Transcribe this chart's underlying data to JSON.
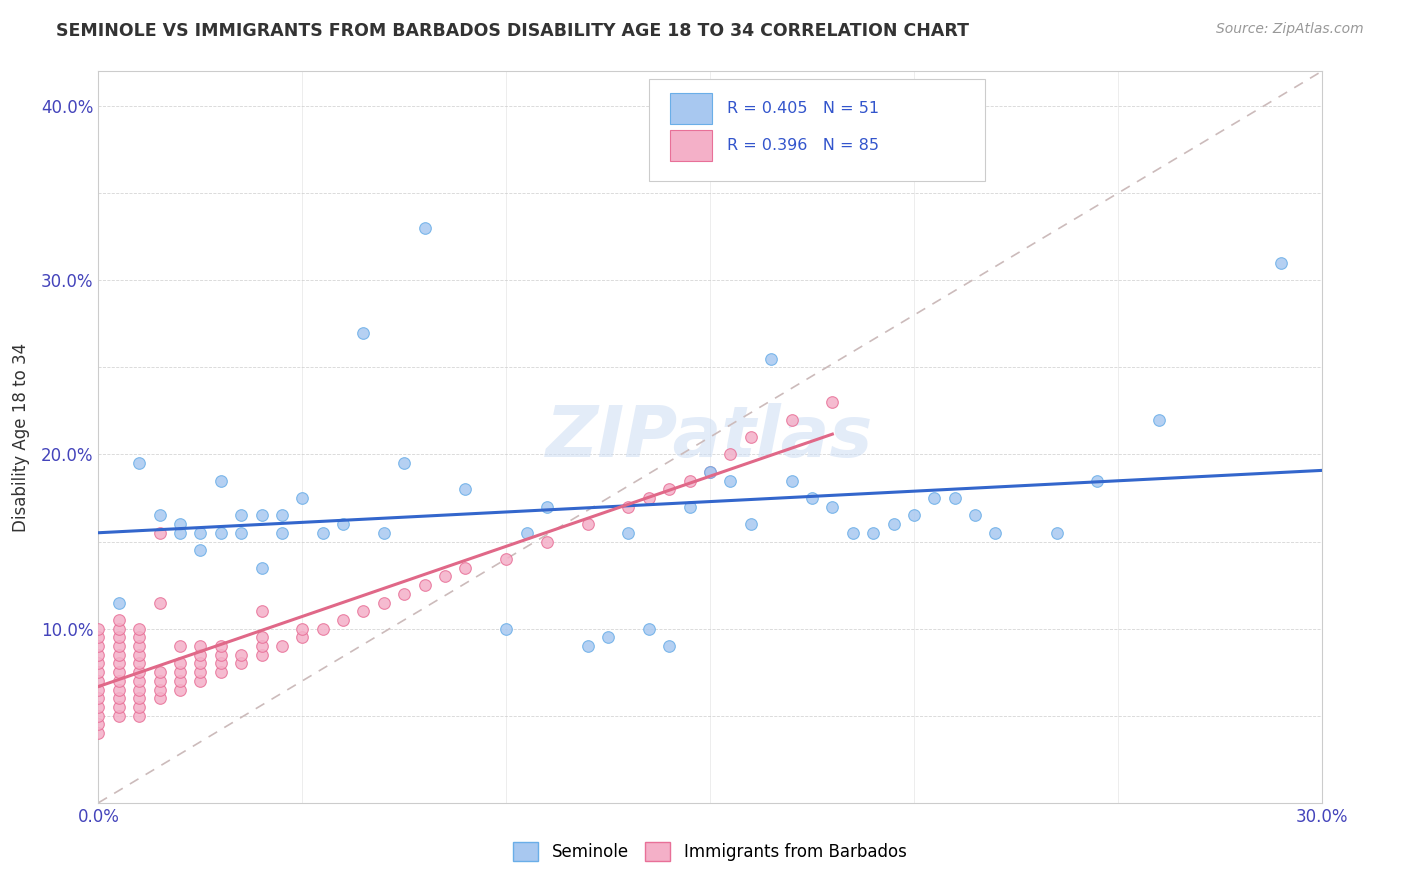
{
  "title": "SEMINOLE VS IMMIGRANTS FROM BARBADOS DISABILITY AGE 18 TO 34 CORRELATION CHART",
  "source_text": "Source: ZipAtlas.com",
  "ylabel": "Disability Age 18 to 34",
  "xlim": [
    0.0,
    0.3
  ],
  "ylim": [
    0.0,
    0.42
  ],
  "x_ticks": [
    0.0,
    0.05,
    0.1,
    0.15,
    0.2,
    0.25,
    0.3
  ],
  "y_ticks": [
    0.0,
    0.05,
    0.1,
    0.15,
    0.2,
    0.25,
    0.3,
    0.35,
    0.4
  ],
  "seminole_color": "#a8c8f0",
  "barbados_color": "#f4b0c8",
  "seminole_edge": "#6aaee8",
  "barbados_edge": "#e87098",
  "trend_seminole_color": "#3366cc",
  "trend_barbados_color": "#e06888",
  "diagonal_color": "#ccbbbb",
  "watermark_text": "ZIPatlas",
  "seminole_x": [
    0.005,
    0.01,
    0.015,
    0.02,
    0.02,
    0.025,
    0.025,
    0.03,
    0.03,
    0.035,
    0.035,
    0.04,
    0.04,
    0.045,
    0.045,
    0.05,
    0.055,
    0.06,
    0.065,
    0.07,
    0.075,
    0.08,
    0.09,
    0.1,
    0.105,
    0.11,
    0.12,
    0.125,
    0.13,
    0.135,
    0.14,
    0.145,
    0.15,
    0.155,
    0.16,
    0.165,
    0.17,
    0.175,
    0.18,
    0.185,
    0.19,
    0.195,
    0.2,
    0.205,
    0.21,
    0.215,
    0.22,
    0.235,
    0.245,
    0.26,
    0.29
  ],
  "seminole_y": [
    0.115,
    0.195,
    0.165,
    0.16,
    0.155,
    0.155,
    0.145,
    0.155,
    0.185,
    0.155,
    0.165,
    0.165,
    0.135,
    0.155,
    0.165,
    0.175,
    0.155,
    0.16,
    0.27,
    0.155,
    0.195,
    0.33,
    0.18,
    0.1,
    0.155,
    0.17,
    0.09,
    0.095,
    0.155,
    0.1,
    0.09,
    0.17,
    0.19,
    0.185,
    0.16,
    0.255,
    0.185,
    0.175,
    0.17,
    0.155,
    0.155,
    0.16,
    0.165,
    0.175,
    0.175,
    0.165,
    0.155,
    0.155,
    0.185,
    0.22,
    0.31
  ],
  "barbados_x": [
    0.0,
    0.0,
    0.0,
    0.0,
    0.0,
    0.0,
    0.0,
    0.0,
    0.0,
    0.0,
    0.0,
    0.0,
    0.0,
    0.005,
    0.005,
    0.005,
    0.005,
    0.005,
    0.005,
    0.005,
    0.005,
    0.005,
    0.005,
    0.005,
    0.005,
    0.01,
    0.01,
    0.01,
    0.01,
    0.01,
    0.01,
    0.01,
    0.01,
    0.01,
    0.01,
    0.01,
    0.015,
    0.015,
    0.015,
    0.015,
    0.015,
    0.015,
    0.02,
    0.02,
    0.02,
    0.02,
    0.02,
    0.025,
    0.025,
    0.025,
    0.025,
    0.025,
    0.03,
    0.03,
    0.03,
    0.03,
    0.035,
    0.035,
    0.04,
    0.04,
    0.04,
    0.04,
    0.045,
    0.05,
    0.05,
    0.055,
    0.06,
    0.065,
    0.07,
    0.075,
    0.08,
    0.085,
    0.09,
    0.1,
    0.11,
    0.12,
    0.13,
    0.135,
    0.14,
    0.145,
    0.15,
    0.155,
    0.16,
    0.17,
    0.18
  ],
  "barbados_y": [
    0.04,
    0.045,
    0.05,
    0.055,
    0.06,
    0.065,
    0.07,
    0.075,
    0.08,
    0.085,
    0.09,
    0.095,
    0.1,
    0.05,
    0.055,
    0.06,
    0.065,
    0.07,
    0.075,
    0.08,
    0.085,
    0.09,
    0.095,
    0.1,
    0.105,
    0.05,
    0.055,
    0.06,
    0.065,
    0.07,
    0.075,
    0.08,
    0.085,
    0.09,
    0.095,
    0.1,
    0.06,
    0.065,
    0.07,
    0.075,
    0.155,
    0.115,
    0.065,
    0.07,
    0.075,
    0.08,
    0.09,
    0.07,
    0.075,
    0.08,
    0.085,
    0.09,
    0.075,
    0.08,
    0.085,
    0.09,
    0.08,
    0.085,
    0.085,
    0.09,
    0.095,
    0.11,
    0.09,
    0.095,
    0.1,
    0.1,
    0.105,
    0.11,
    0.115,
    0.12,
    0.125,
    0.13,
    0.135,
    0.14,
    0.15,
    0.16,
    0.17,
    0.175,
    0.18,
    0.185,
    0.19,
    0.2,
    0.21,
    0.22,
    0.23
  ]
}
